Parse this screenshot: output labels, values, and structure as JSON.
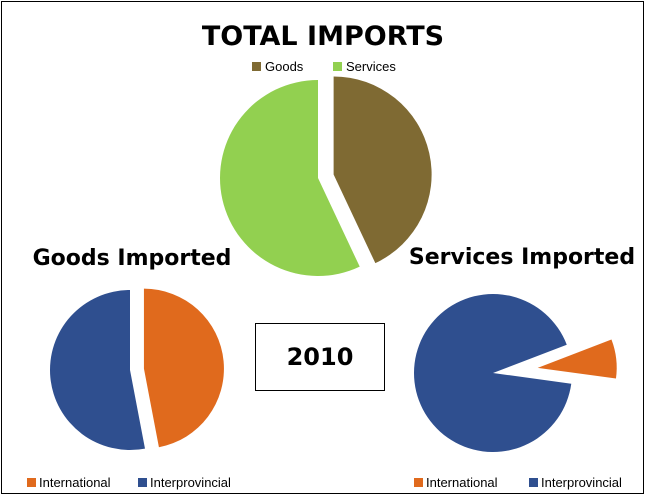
{
  "year_label": "2010",
  "colors": {
    "goods": "#7F6A33",
    "services": "#92D050",
    "international": "#E06A1D",
    "interprovincial": "#2F4F8F"
  },
  "chart_data": [
    {
      "type": "pie",
      "title": "TOTAL IMPORTS",
      "categories": [
        "Goods",
        "Services"
      ],
      "values": [
        43,
        57
      ],
      "legend_position": "top",
      "exploded": true
    },
    {
      "type": "pie",
      "title": "Goods Imported",
      "categories": [
        "International",
        "Interprovincial"
      ],
      "values": [
        47,
        53
      ],
      "legend_position": "bottom",
      "exploded": true
    },
    {
      "type": "pie",
      "title": "Services Imported",
      "categories": [
        "International",
        "Interprovincial"
      ],
      "values": [
        8,
        92
      ],
      "legend_position": "bottom",
      "exploded": true
    }
  ]
}
